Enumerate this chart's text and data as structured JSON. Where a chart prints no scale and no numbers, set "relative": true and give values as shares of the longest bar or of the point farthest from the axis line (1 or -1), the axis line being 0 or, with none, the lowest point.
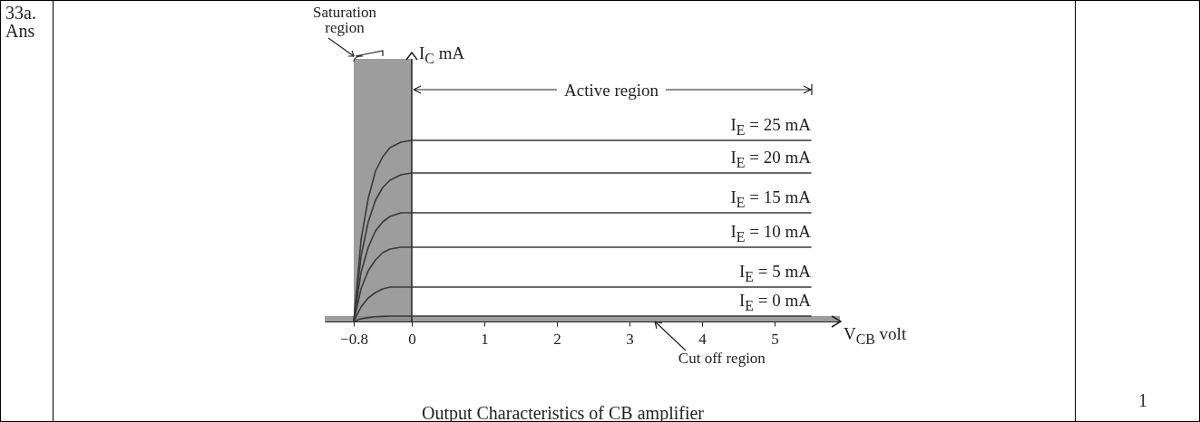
{
  "chart_data": {
    "type": "line",
    "title": "Output Characteristics of CB amplifier",
    "xlabel": "V$_{CB}$ volt",
    "ylabel": "I$_{C}$ mA",
    "relative": true,
    "x": [
      -0.8,
      -0.7,
      -0.6,
      -0.5,
      -0.4,
      -0.3,
      -0.15,
      0,
      5.5
    ],
    "xlim": [
      -1.2,
      5.9
    ],
    "xticks": [
      -0.8,
      0,
      1,
      2,
      3,
      4,
      5
    ],
    "series": [
      {
        "name": "I$_{E}$ = 25 mA",
        "color": "#3a3a3a",
        "values": [
          0,
          0.45,
          0.68,
          0.83,
          0.91,
          0.96,
          0.99,
          1,
          1
        ]
      },
      {
        "name": "I$_{E}$ = 20 mA",
        "color": "#3a3a3a",
        "values": [
          0,
          0.36,
          0.55,
          0.67,
          0.74,
          0.78,
          0.81,
          0.82,
          0.82
        ]
      },
      {
        "name": "I$_{E}$ = 15 mA",
        "color": "#3a3a3a",
        "values": [
          0,
          0.27,
          0.41,
          0.5,
          0.55,
          0.58,
          0.6,
          0.6,
          0.6
        ]
      },
      {
        "name": "I$_{E}$ = 10 mA",
        "color": "#3a3a3a",
        "values": [
          0,
          0.18,
          0.28,
          0.34,
          0.38,
          0.4,
          0.41,
          0.41,
          0.41
        ]
      },
      {
        "name": "I$_{E}$ = 5 mA",
        "color": "#3a3a3a",
        "values": [
          0,
          0.08,
          0.13,
          0.16,
          0.18,
          0.19,
          0.19,
          0.19,
          0.19
        ]
      },
      {
        "name": "I$_{E}$ = 0 mA",
        "color": "#3a3a3a",
        "values": [
          0,
          0.015,
          0.022,
          0.026,
          0.028,
          0.03,
          0.03,
          0.03,
          0.03
        ]
      }
    ],
    "bands": [
      {
        "axis": "x",
        "from": -0.8,
        "to": 0,
        "label": "Saturation region",
        "color": "#8c8c8c"
      },
      {
        "axis": "y",
        "from": 0,
        "to": 0.03,
        "label": "Cut off region",
        "color": "#8c8c8c"
      }
    ],
    "annotations": [
      "Active region",
      "33a. Ans",
      "1"
    ]
  }
}
